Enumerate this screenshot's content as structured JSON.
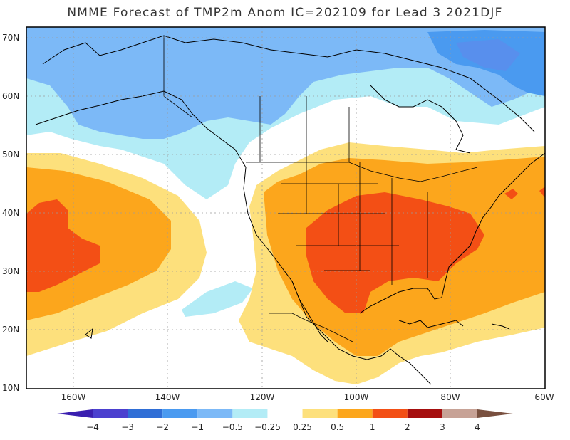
{
  "title": "NMME Forecast of TMP2m Anom IC=202109 for Lead 3 2021DJF",
  "lat_labels": [
    "70N",
    "60N",
    "50N",
    "40N",
    "30N",
    "20N",
    "10N"
  ],
  "lon_labels": [
    "160W",
    "140W",
    "120W",
    "100W",
    "80W",
    "60W"
  ],
  "colorbar": {
    "labels": [
      "−4",
      "−3",
      "−2",
      "−1",
      "−0.5",
      "−0.25",
      "0.25",
      "0.5",
      "1",
      "2",
      "3",
      "4"
    ],
    "colors": [
      "#3a1fb0",
      "#4b40cf",
      "#2f6ed6",
      "#4a9af0",
      "#7cb9f7",
      "#b3ecf6",
      "#ffffff",
      "#fde07c",
      "#fca61c",
      "#f34f15",
      "#a50e0e",
      "#c7a296",
      "#79503f"
    ]
  },
  "fill_colors": {
    "ocean": "#ffffff",
    "weak_pos": "#fde07c",
    "mod_pos": "#fca61c",
    "strong_pos": "#f34f15",
    "weak_neg": "#b3ecf6",
    "mod_neg": "#7cb9f7",
    "strong_neg": "#4a9af0"
  }
}
